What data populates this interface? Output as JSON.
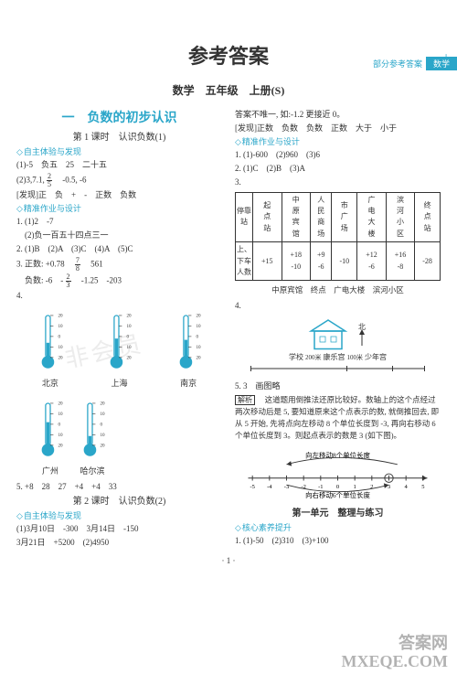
{
  "header": {
    "left": "部分参考答案",
    "tag": "数学",
    "corner": "+"
  },
  "title": "参考答案",
  "subtitle": "数学　五年级　上册(S)",
  "colors": {
    "cyan": "#2aa6c9",
    "text": "#333333",
    "bg": "#ffffff"
  },
  "left": {
    "unit": "一　负数的初步认识",
    "lesson1": "第 1 课时　认识负数(1)",
    "zizhu": "自主体验与发现",
    "l1": "(1)-5　负五　25　二十五",
    "l2a": "(2)3,7.1,",
    "l2b": "　-0.5, -6",
    "faxian": "[发现]正　负　+　-　正数　负数",
    "jingzhun": "精准作业与设计",
    "j1": "1. (1)2　-7",
    "j1b": "　(2)负一百五十四点三一",
    "j2": "2. (1)B　(2)A　(3)C　(4)A　(5)C",
    "j3a": "3. 正数: +0.78　",
    "j3b": "　561",
    "j3c": "　负数: -6　-",
    "j3d": "　-1.25　-203",
    "item4": "4.",
    "thermos1": [
      {
        "city": "北京",
        "fill": 35
      },
      {
        "city": "上海",
        "fill": 45
      },
      {
        "city": "南京",
        "fill": 42
      }
    ],
    "thermos2": [
      {
        "city": "广州",
        "fill": 55
      },
      {
        "city": "哈尔滨",
        "fill": 22
      }
    ],
    "therm_ticks": [
      "20",
      "10",
      "0",
      "10",
      "20"
    ],
    "l5": "5. +8　28　27　+4　+4　33",
    "lesson2": "第 2 课时　认识负数(2)",
    "zizhu2": "自主体验与发现",
    "k1": "(1)3月10日　-300　3月14日　-150",
    "k2": "3月21日　+5200　(2)4950"
  },
  "right": {
    "r0": "答案不唯一, 如:-1.2 更接近 0。",
    "r1": "[发现]正数　负数　负数　正数　大于　小于",
    "jingzhun": "精准作业与设计",
    "r2": "1. (1)-600　(2)960　(3)6",
    "r3": "2. (1)C　(2)B　(3)A",
    "item3": "3.",
    "bus_row1_label": "停靠站",
    "bus_row1": [
      "起点站",
      "中原宾馆",
      "人民商场",
      "市广场",
      "广电大楼",
      "滨河小区",
      "终点站"
    ],
    "bus_row2_label": "上、下车人数",
    "bus_row2": [
      "+15",
      "+18\n-10",
      "+9\n-6",
      "-10",
      "+12\n-6",
      "+16\n-8",
      "-28"
    ],
    "bus_bottom": "中原宾馆　终点　广电大楼　滨河小区",
    "item4": "4.",
    "map_bottom": [
      "学校",
      "200米",
      "康乐宫",
      "100米",
      "少年宫"
    ],
    "compass": "北",
    "r5": "5. 3　画图略",
    "jiexi_label": "解析",
    "jiexi": "　这道题用倒推法还原比较好。数轴上的这个点经过两次移动后是 5, 要知道原来这个点表示的数, 就倒推回去, 即从 5 开始, 先将点向左移动 8 个单位长度到 -3, 再向右移动 6 个单位长度到 3。则起点表示的数是 3 (如下图)。",
    "numline": {
      "arrow_left": "向左移动8个单位长度",
      "arrow_right": "向右移动6个单位长度",
      "ticks": [
        "-5",
        "-4",
        "-3",
        "-2",
        "-1",
        "0",
        "1",
        "2",
        "3",
        "4",
        "5"
      ],
      "mark": "3"
    },
    "unit_review": "第一单元　整理与练习",
    "hexin": "核心素养提升",
    "h1": "1. (1)-50　(2)310　(3)+100"
  },
  "pagefoot": "· 1 ·",
  "watermark": "答案网\nMXEQE.COM",
  "wm2": "非会员"
}
